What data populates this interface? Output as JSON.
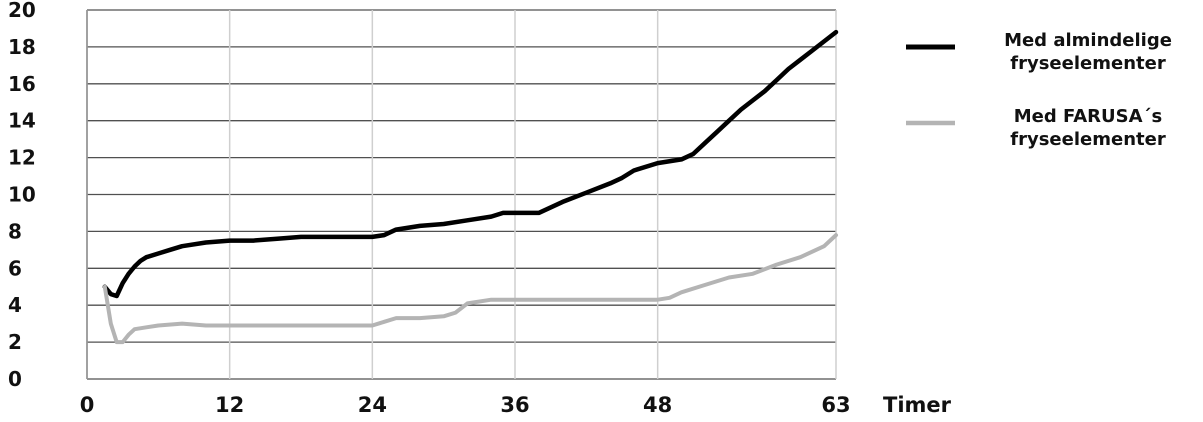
{
  "chart_data": {
    "type": "line",
    "xlabel": "Timer",
    "ylabel": "",
    "xlim": [
      0,
      63
    ],
    "ylim": [
      0,
      20
    ],
    "grid": true,
    "legend_position": "right",
    "y_ticks": [
      "0",
      "2",
      "4",
      "6",
      "8",
      "10",
      "12",
      "14",
      "16",
      "18",
      "20"
    ],
    "x_ticks": [
      "0",
      "12",
      "24",
      "36",
      "48",
      "63"
    ],
    "x_tick_values": [
      0,
      12,
      24,
      36,
      48,
      63
    ],
    "series": [
      {
        "name": "Med almindelige fryseelementer",
        "legend_lines": [
          "Med almindelige",
          "fryseelementer"
        ],
        "color": "#000000",
        "points": [
          [
            1.5,
            5.0
          ],
          [
            2.0,
            4.6
          ],
          [
            2.5,
            4.5
          ],
          [
            3.0,
            5.2
          ],
          [
            3.5,
            5.7
          ],
          [
            4.0,
            6.1
          ],
          [
            4.5,
            6.4
          ],
          [
            5.0,
            6.6
          ],
          [
            6.0,
            6.8
          ],
          [
            7.0,
            7.0
          ],
          [
            8.0,
            7.2
          ],
          [
            10.0,
            7.4
          ],
          [
            12.0,
            7.5
          ],
          [
            14.0,
            7.5
          ],
          [
            16.0,
            7.6
          ],
          [
            18.0,
            7.7
          ],
          [
            20.0,
            7.7
          ],
          [
            22.0,
            7.7
          ],
          [
            24.0,
            7.7
          ],
          [
            25.0,
            7.8
          ],
          [
            26.0,
            8.1
          ],
          [
            28.0,
            8.3
          ],
          [
            30.0,
            8.4
          ],
          [
            32.0,
            8.6
          ],
          [
            34.0,
            8.8
          ],
          [
            35.0,
            9.0
          ],
          [
            37.0,
            9.0
          ],
          [
            38.0,
            9.0
          ],
          [
            39.0,
            9.3
          ],
          [
            40.0,
            9.6
          ],
          [
            42.0,
            10.1
          ],
          [
            44.0,
            10.6
          ],
          [
            45.0,
            10.9
          ],
          [
            46.0,
            11.3
          ],
          [
            48.0,
            11.7
          ],
          [
            50.0,
            11.9
          ],
          [
            51.0,
            12.2
          ],
          [
            52.0,
            12.8
          ],
          [
            53.0,
            13.4
          ],
          [
            54.0,
            14.0
          ],
          [
            55.0,
            14.6
          ],
          [
            56.0,
            15.1
          ],
          [
            57.0,
            15.6
          ],
          [
            58.0,
            16.2
          ],
          [
            59.0,
            16.8
          ],
          [
            60.0,
            17.3
          ],
          [
            61.0,
            17.8
          ],
          [
            62.0,
            18.3
          ],
          [
            63.0,
            18.8
          ]
        ]
      },
      {
        "name": "Med FARUSA´s fryseelementer",
        "legend_lines": [
          "Med FARUSA´s",
          "fryseelementer"
        ],
        "color": "#b4b4b4",
        "points": [
          [
            1.5,
            5.0
          ],
          [
            2.0,
            3.0
          ],
          [
            2.5,
            2.0
          ],
          [
            3.0,
            2.0
          ],
          [
            3.5,
            2.4
          ],
          [
            4.0,
            2.7
          ],
          [
            5.0,
            2.8
          ],
          [
            6.0,
            2.9
          ],
          [
            8.0,
            3.0
          ],
          [
            10.0,
            2.9
          ],
          [
            12.0,
            2.9
          ],
          [
            14.0,
            2.9
          ],
          [
            16.0,
            2.9
          ],
          [
            18.0,
            2.9
          ],
          [
            20.0,
            2.9
          ],
          [
            22.0,
            2.9
          ],
          [
            24.0,
            2.9
          ],
          [
            25.0,
            3.1
          ],
          [
            26.0,
            3.3
          ],
          [
            28.0,
            3.3
          ],
          [
            30.0,
            3.4
          ],
          [
            31.0,
            3.6
          ],
          [
            32.0,
            4.1
          ],
          [
            34.0,
            4.3
          ],
          [
            36.0,
            4.3
          ],
          [
            38.0,
            4.3
          ],
          [
            40.0,
            4.3
          ],
          [
            42.0,
            4.3
          ],
          [
            44.0,
            4.3
          ],
          [
            46.0,
            4.3
          ],
          [
            48.0,
            4.3
          ],
          [
            49.0,
            4.4
          ],
          [
            50.0,
            4.7
          ],
          [
            52.0,
            5.1
          ],
          [
            54.0,
            5.5
          ],
          [
            56.0,
            5.7
          ],
          [
            58.0,
            6.2
          ],
          [
            60.0,
            6.6
          ],
          [
            62.0,
            7.2
          ],
          [
            63.0,
            7.8
          ]
        ]
      }
    ]
  }
}
